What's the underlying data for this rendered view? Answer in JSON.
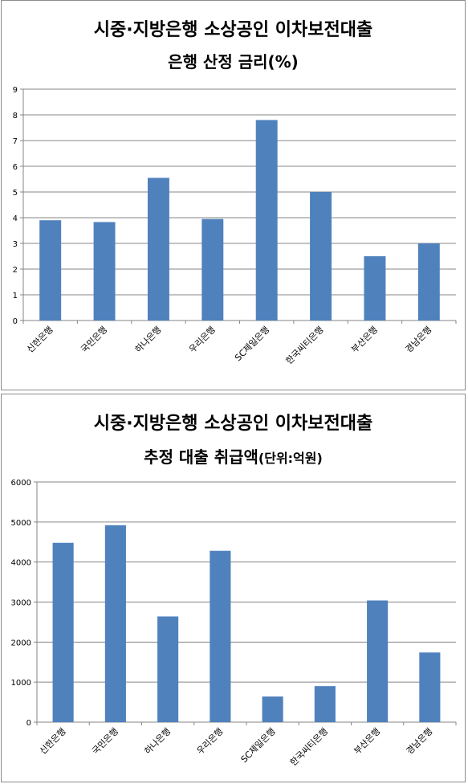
{
  "chart_data": [
    {
      "type": "bar",
      "title_line1": "시중·지방은행 소상공인 이차보전대출",
      "title_line2": "은행 산정 금리(%)",
      "categories": [
        "신한은행",
        "국민은행",
        "하나은행",
        "우리은행",
        "SC제일은행",
        "한국씨티은행",
        "부산은행",
        "경남은행"
      ],
      "values": [
        3.9,
        3.83,
        5.55,
        3.95,
        7.8,
        5.0,
        2.5,
        3.0
      ],
      "ylim": [
        0,
        9
      ],
      "yticks": [
        "0",
        "1",
        "2",
        "3",
        "4",
        "5",
        "6",
        "7",
        "8",
        "9"
      ],
      "grid": true,
      "legend": "none",
      "bar_color": "#4f81bd"
    },
    {
      "type": "bar",
      "title_line1": "시중·지방은행 소상공인 이차보전대출",
      "title_line2_main": "추정 대출 취급액",
      "title_line2_unit": "(단위:억원)",
      "categories": [
        "신한은행",
        "국민은행",
        "하나은행",
        "우리은행",
        "SC제일은행",
        "한국씨티은행",
        "부산은행",
        "경남은행"
      ],
      "values": [
        4480,
        4920,
        2640,
        4280,
        640,
        900,
        3040,
        1740
      ],
      "ylim": [
        0,
        6000
      ],
      "yticks": [
        "0",
        "1000",
        "2000",
        "3000",
        "4000",
        "5000",
        "6000"
      ],
      "grid": true,
      "legend": "none",
      "bar_color": "#4f81bd"
    }
  ]
}
